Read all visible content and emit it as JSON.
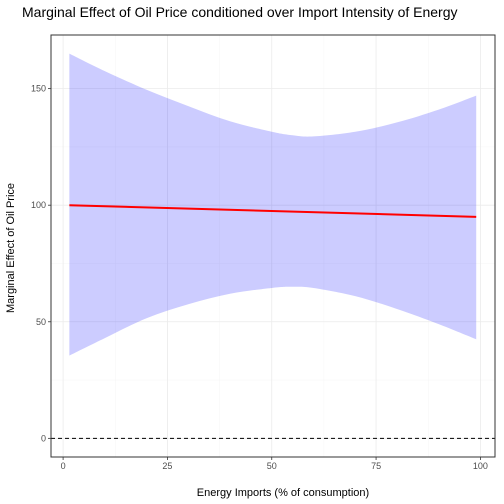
{
  "chart_data": {
    "type": "line",
    "title": "Marginal Effect of Oil Price conditioned over Import Intensity of Energy",
    "xlabel": "Energy Imports (% of consumption)",
    "ylabel": "Marginal Effect of Oil Price",
    "xlim": [
      -2.9,
      103.5
    ],
    "ylim": [
      -8,
      173
    ],
    "x_ticks": [
      0,
      25,
      50,
      75,
      100
    ],
    "y_ticks": [
      0,
      50,
      100,
      150
    ],
    "grid": true,
    "series": [
      {
        "color": "#ff0000",
        "x": [
          1.5,
          99
        ],
        "y": [
          100,
          95
        ]
      }
    ],
    "confidence_band": {
      "color": "#0000ff",
      "opacity": 0.2,
      "x": [
        1.5,
        10,
        20,
        30,
        40,
        50,
        55,
        60,
        70,
        80,
        90,
        99
      ],
      "lower": [
        35.5,
        43,
        51.5,
        57.5,
        62,
        64.5,
        65,
        64.5,
        61,
        55.5,
        49,
        42.5
      ],
      "upper": [
        165,
        157.5,
        149.5,
        142.5,
        136,
        131.5,
        130,
        129.5,
        131.5,
        135.5,
        141,
        147
      ]
    },
    "reference_line": {
      "y": 0,
      "style": "dashed",
      "color": "#000000"
    }
  }
}
